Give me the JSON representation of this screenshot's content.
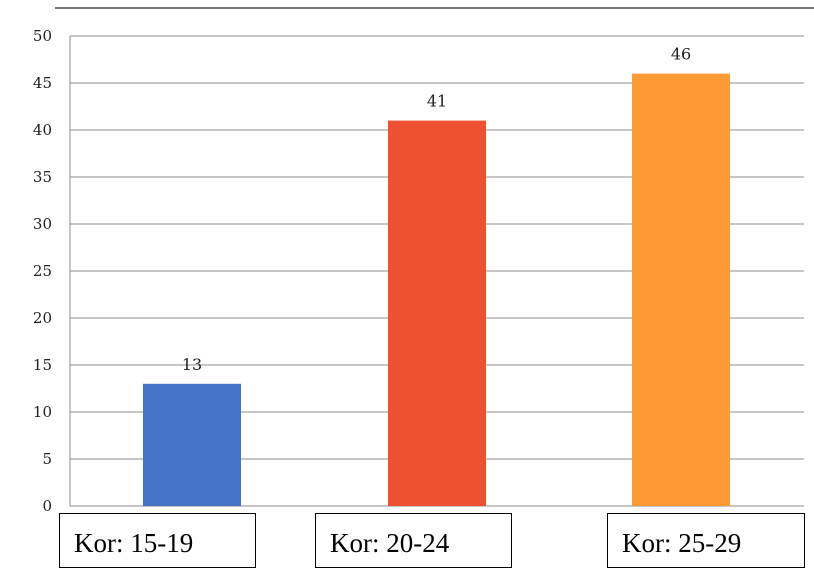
{
  "chart_data": {
    "type": "bar",
    "categories": [
      "Kor: 15-19",
      "Kor: 20-24",
      "Kor: 25-29"
    ],
    "values": [
      13,
      41,
      46
    ],
    "value_labels": [
      "13",
      "41",
      "46"
    ],
    "yticks": [
      "0",
      "5",
      "10",
      "15",
      "20",
      "25",
      "30",
      "35",
      "40",
      "45",
      "50"
    ],
    "ylim": [
      0,
      50
    ],
    "grid": true,
    "colors": [
      "#4472c4",
      "#ee5032",
      "#ff9933"
    ]
  }
}
